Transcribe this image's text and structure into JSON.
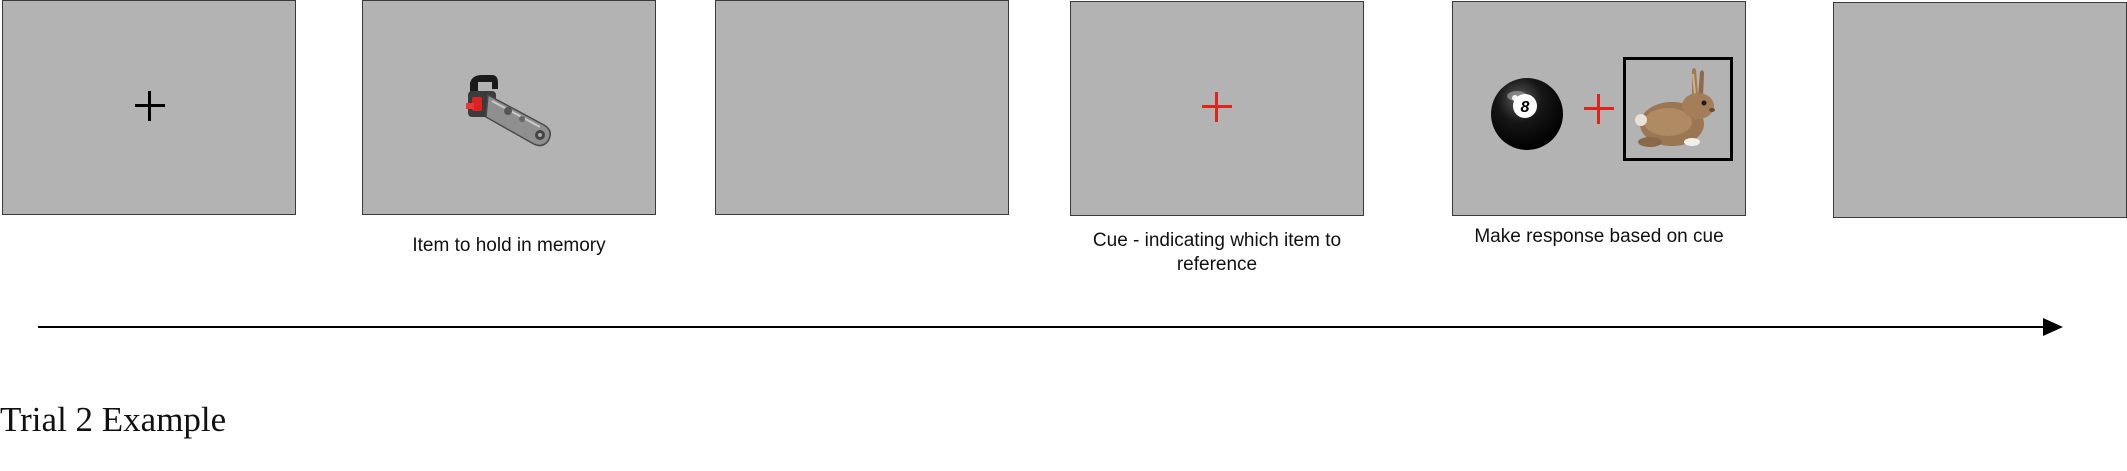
{
  "captions": {
    "memory_item": "Item to hold in memory",
    "cue_line1": "Cue - indicating which item to",
    "cue_line2": "reference",
    "response": "Make response based on cue"
  },
  "title": "Trial 2 Example",
  "icons": {
    "fixation": "plus-icon",
    "memory_item": "chainsaw-icon",
    "response_left": "eight-ball-icon",
    "response_right": "rabbit-icon"
  },
  "colors": {
    "frame_fill": "#b3b3b3",
    "fixation_black": "#000000",
    "fixation_red": "#e0241b",
    "arrow": "#000000"
  }
}
